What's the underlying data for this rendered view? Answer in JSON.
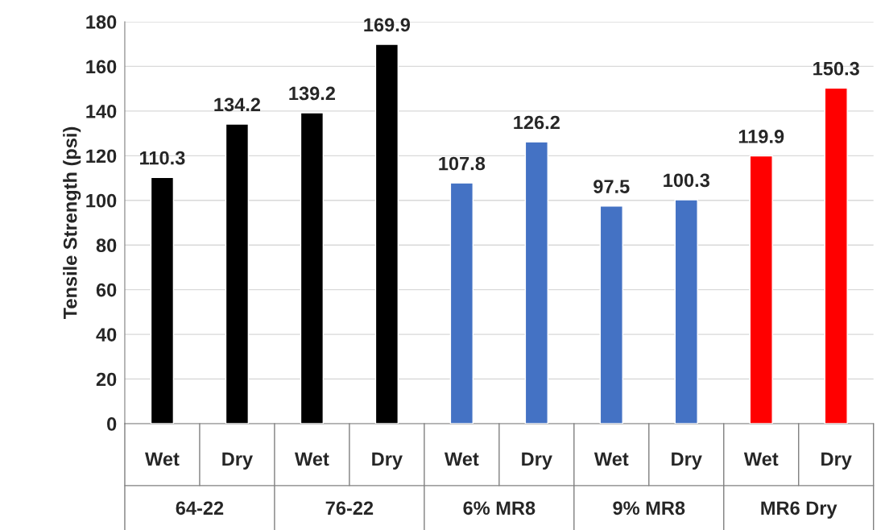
{
  "chart_data": {
    "type": "bar",
    "ylabel": "Tensile Strength (psi)",
    "categories": [
      "Wet",
      "Dry",
      "Wet",
      "Dry",
      "Wet",
      "Dry",
      "Wet",
      "Dry",
      "Wet",
      "Dry"
    ],
    "values": [
      110.3,
      134.2,
      139.2,
      169.9,
      107.8,
      126.2,
      97.5,
      100.3,
      119.9,
      150.3
    ],
    "colors": [
      "#000000",
      "#000000",
      "#000000",
      "#000000",
      "#4472c4",
      "#4472c4",
      "#4472c4",
      "#4472c4",
      "#ff0000",
      "#ff0000"
    ],
    "annotations": [
      "64-22",
      "76-22",
      "6% MR8",
      "9% MR8",
      "MR6 Dry"
    ],
    "ylim": [
      0,
      180
    ],
    "yticks": [
      0,
      20,
      40,
      60,
      80,
      100,
      120,
      140,
      160,
      180
    ],
    "grid": "y",
    "data_labels": true,
    "legend": false
  }
}
